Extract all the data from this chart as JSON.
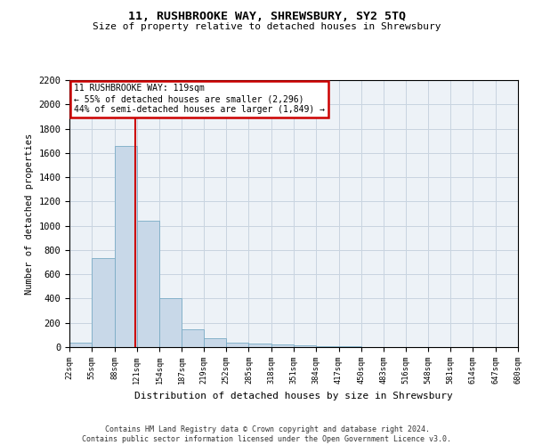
{
  "title": "11, RUSHBROOKE WAY, SHREWSBURY, SY2 5TQ",
  "subtitle": "Size of property relative to detached houses in Shrewsbury",
  "xlabel": "Distribution of detached houses by size in Shrewsbury",
  "ylabel": "Number of detached properties",
  "bar_edges": [
    22,
    55,
    88,
    121,
    154,
    187,
    219,
    252,
    285,
    318,
    351,
    384,
    417,
    450,
    483,
    516,
    548,
    581,
    614,
    647,
    680
  ],
  "bar_heights": [
    40,
    735,
    1660,
    1040,
    400,
    145,
    75,
    40,
    30,
    20,
    15,
    10,
    5,
    3,
    2,
    1,
    1,
    0,
    0,
    0
  ],
  "bar_color": "#c8d8e8",
  "bar_edge_color": "#7aaBc5",
  "vline_x": 119,
  "vline_color": "#cc0000",
  "ylim": [
    0,
    2200
  ],
  "yticks": [
    0,
    200,
    400,
    600,
    800,
    1000,
    1200,
    1400,
    1600,
    1800,
    2000,
    2200
  ],
  "grid_color": "#c8d4e0",
  "annotation_text": "11 RUSHBROOKE WAY: 119sqm\n← 55% of detached houses are smaller (2,296)\n44% of semi-detached houses are larger (1,849) →",
  "annotation_box_color": "#cc0000",
  "footer_line1": "Contains HM Land Registry data © Crown copyright and database right 2024.",
  "footer_line2": "Contains public sector information licensed under the Open Government Licence v3.0.",
  "bg_color": "#edf2f7"
}
